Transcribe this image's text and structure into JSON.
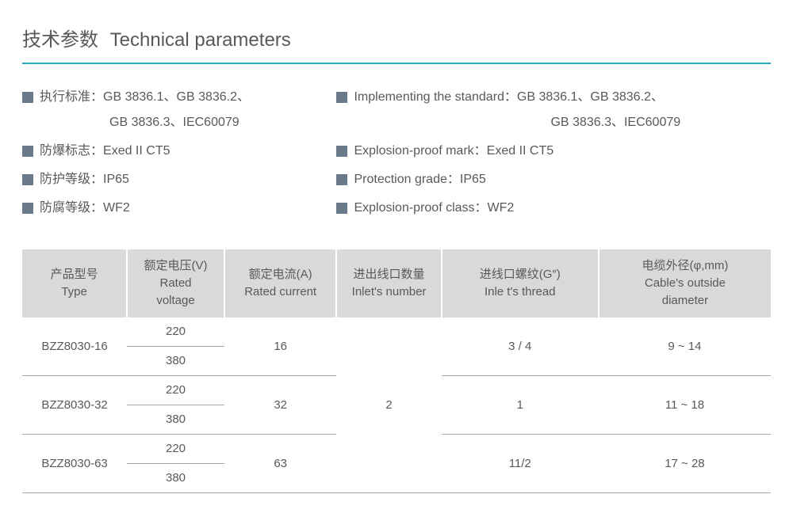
{
  "title": {
    "cn": "技术参数",
    "en": "Technical parameters"
  },
  "specs_cn": {
    "items": [
      {
        "label": "执行标准：",
        "value": "GB 3836.1、GB 3836.2、",
        "continuation": "GB 3836.3、IEC60079"
      },
      {
        "label": "防爆标志：",
        "value": "Exed II CT5"
      },
      {
        "label": "防护等级：",
        "value": "IP65"
      },
      {
        "label": "防腐等级：",
        "value": "WF2"
      }
    ]
  },
  "specs_en": {
    "items": [
      {
        "label": "Implementing the standard：",
        "value": "GB 3836.1、GB 3836.2、",
        "continuation": "GB 3836.3、IEC60079"
      },
      {
        "label": "Explosion-proof mark：",
        "value": "Exed II CT5"
      },
      {
        "label": "Protection grade：",
        "value": "IP65"
      },
      {
        "label": "Explosion-proof class：",
        "value": "WF2"
      }
    ]
  },
  "table": {
    "columns": [
      {
        "line1": "产品型号",
        "line2": "Type"
      },
      {
        "line1": "额定电压(V)",
        "line2": "Rated",
        "line3": "voltage"
      },
      {
        "line1": "额定电流(A)",
        "line2": "Rated current"
      },
      {
        "line1": "进出线口数量",
        "line2": "Inlet's number"
      },
      {
        "line1": "进线口螺纹(G″)",
        "line2": "Inle t's thread"
      },
      {
        "line1": "电缆外径(φ,mm)",
        "line2": "Cable's outside",
        "line3": "diameter"
      }
    ],
    "rows": [
      {
        "type": "BZZ8030-16",
        "voltage1": "220",
        "voltage2": "380",
        "current": "16",
        "thread": "3 / 4",
        "cable": "9 ~ 14"
      },
      {
        "type": "BZZ8030-32",
        "voltage1": "220",
        "voltage2": "380",
        "current": "32",
        "thread": "1",
        "cable": "11 ~ 18"
      },
      {
        "type": "BZZ8030-63",
        "voltage1": "220",
        "voltage2": "380",
        "current": "63",
        "thread": "11/2",
        "cable": "17 ~ 28"
      }
    ],
    "inlets_number": "2",
    "styling": {
      "header_bg": "#d7d9db",
      "border_color": "#a8a8a8",
      "text_color": "#595959",
      "title_underline": "#2aa8b5",
      "bullet_color": "#6a7a8a"
    }
  }
}
